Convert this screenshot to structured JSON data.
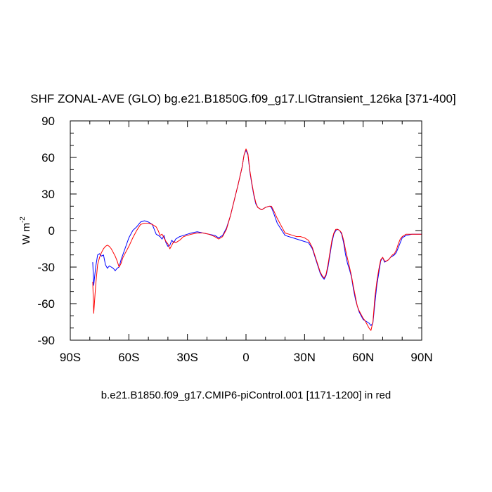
{
  "chart_data": {
    "type": "line",
    "title": "SHF ZONAL-AVE (GLO) bg.e21.B1850G.f09_g17.LIGtransient_126ka [371-400]",
    "caption": "b.e21.B1850.f09_g17.CMIP6-piControl.001 [1171-1200] in red",
    "ylabel_main": "W m",
    "ylabel_sup": "-2",
    "xlim": [
      -90,
      90
    ],
    "ylim": [
      -90,
      90
    ],
    "xticks": [
      {
        "value": -90,
        "label": "90S"
      },
      {
        "value": -60,
        "label": "60S"
      },
      {
        "value": -30,
        "label": "30S"
      },
      {
        "value": 0,
        "label": "0"
      },
      {
        "value": 30,
        "label": "30N"
      },
      {
        "value": 60,
        "label": "60N"
      },
      {
        "value": 90,
        "label": "90N"
      }
    ],
    "yticks": [
      {
        "value": 90,
        "label": "90"
      },
      {
        "value": 60,
        "label": "60"
      },
      {
        "value": 30,
        "label": "30"
      },
      {
        "value": 0,
        "label": "0"
      },
      {
        "value": -30,
        "label": "-30"
      },
      {
        "value": -60,
        "label": "-60"
      },
      {
        "value": -90,
        "label": "-90"
      }
    ],
    "x_minor_step": 10,
    "y_minor_step": 10,
    "grid": false,
    "series": [
      {
        "color": "#0000ff",
        "points": [
          [
            -78.5,
            -26
          ],
          [
            -78,
            -45
          ],
          [
            -77,
            -30
          ],
          [
            -76,
            -20
          ],
          [
            -75,
            -19
          ],
          [
            -74,
            -21
          ],
          [
            -73,
            -20
          ],
          [
            -72,
            -28
          ],
          [
            -71,
            -31
          ],
          [
            -70,
            -29
          ],
          [
            -69,
            -30
          ],
          [
            -68,
            -31
          ],
          [
            -67,
            -33
          ],
          [
            -66,
            -31
          ],
          [
            -65,
            -30
          ],
          [
            -64,
            -24
          ],
          [
            -62,
            -15
          ],
          [
            -60,
            -6
          ],
          [
            -58,
            0
          ],
          [
            -56,
            3
          ],
          [
            -54,
            7
          ],
          [
            -52,
            8
          ],
          [
            -50,
            7
          ],
          [
            -48,
            5
          ],
          [
            -46,
            -3
          ],
          [
            -45,
            -4
          ],
          [
            -44,
            -5
          ],
          [
            -43,
            -7
          ],
          [
            -42,
            -4
          ],
          [
            -41,
            -10
          ],
          [
            -40,
            -13
          ],
          [
            -39,
            -12
          ],
          [
            -38,
            -8
          ],
          [
            -37,
            -10
          ],
          [
            -36,
            -7
          ],
          [
            -34,
            -5
          ],
          [
            -32,
            -4
          ],
          [
            -30,
            -3
          ],
          [
            -28,
            -2
          ],
          [
            -25,
            -1
          ],
          [
            -22,
            -2
          ],
          [
            -19,
            -3
          ],
          [
            -16,
            -4
          ],
          [
            -14,
            -6
          ],
          [
            -12,
            -4
          ],
          [
            -10,
            2
          ],
          [
            -8,
            12
          ],
          [
            -6,
            25
          ],
          [
            -4,
            38
          ],
          [
            -2,
            52
          ],
          [
            -1,
            62
          ],
          [
            0,
            66
          ],
          [
            1,
            62
          ],
          [
            2,
            48
          ],
          [
            3,
            38
          ],
          [
            4,
            29
          ],
          [
            5,
            22
          ],
          [
            6,
            19
          ],
          [
            7,
            18
          ],
          [
            8,
            17
          ],
          [
            10,
            19
          ],
          [
            12,
            20
          ],
          [
            13,
            19
          ],
          [
            14,
            15
          ],
          [
            16,
            6
          ],
          [
            18,
            1
          ],
          [
            20,
            -4
          ],
          [
            22,
            -5
          ],
          [
            24,
            -6
          ],
          [
            26,
            -7
          ],
          [
            28,
            -8
          ],
          [
            30,
            -9
          ],
          [
            32,
            -10
          ],
          [
            34,
            -15
          ],
          [
            36,
            -25
          ],
          [
            38,
            -35
          ],
          [
            39,
            -38
          ],
          [
            40,
            -40
          ],
          [
            41,
            -37
          ],
          [
            42,
            -30
          ],
          [
            43,
            -20
          ],
          [
            44,
            -10
          ],
          [
            45,
            -3
          ],
          [
            46,
            0
          ],
          [
            47,
            1
          ],
          [
            48,
            0
          ],
          [
            49,
            -3
          ],
          [
            50,
            -10
          ],
          [
            51,
            -20
          ],
          [
            52,
            -27
          ],
          [
            53,
            -32
          ],
          [
            54,
            -38
          ],
          [
            55,
            -48
          ],
          [
            56,
            -56
          ],
          [
            57,
            -62
          ],
          [
            58,
            -67
          ],
          [
            59,
            -70
          ],
          [
            60,
            -73
          ],
          [
            61,
            -74
          ],
          [
            62,
            -75
          ],
          [
            63,
            -76
          ],
          [
            64,
            -78
          ],
          [
            65,
            -76
          ],
          [
            66,
            -60
          ],
          [
            67,
            -45
          ],
          [
            68,
            -35
          ],
          [
            69,
            -25
          ],
          [
            70,
            -22
          ],
          [
            71,
            -26
          ],
          [
            72,
            -25
          ],
          [
            73,
            -24
          ],
          [
            74,
            -22
          ],
          [
            75,
            -21
          ],
          [
            76,
            -20
          ],
          [
            77,
            -18
          ],
          [
            78,
            -14
          ],
          [
            79,
            -10
          ],
          [
            80,
            -6
          ],
          [
            82,
            -4
          ],
          [
            85,
            -3
          ],
          [
            90,
            -3
          ]
        ]
      },
      {
        "color": "#ff0000",
        "points": [
          [
            -78.5,
            -42
          ],
          [
            -78,
            -68
          ],
          [
            -77,
            -45
          ],
          [
            -76,
            -28
          ],
          [
            -75,
            -22
          ],
          [
            -74,
            -18
          ],
          [
            -73,
            -15
          ],
          [
            -72,
            -13
          ],
          [
            -71,
            -12
          ],
          [
            -70,
            -13
          ],
          [
            -69,
            -15
          ],
          [
            -68,
            -18
          ],
          [
            -67,
            -21
          ],
          [
            -66,
            -25
          ],
          [
            -65,
            -30
          ],
          [
            -64,
            -27
          ],
          [
            -63,
            -22
          ],
          [
            -62,
            -19
          ],
          [
            -60,
            -13
          ],
          [
            -58,
            -6
          ],
          [
            -56,
            0
          ],
          [
            -54,
            5
          ],
          [
            -52,
            6
          ],
          [
            -50,
            6
          ],
          [
            -48,
            5
          ],
          [
            -46,
            3
          ],
          [
            -45,
            0
          ],
          [
            -44,
            -4
          ],
          [
            -43,
            -3
          ],
          [
            -42,
            -6
          ],
          [
            -41,
            -9
          ],
          [
            -40,
            -11
          ],
          [
            -39,
            -15
          ],
          [
            -38,
            -12
          ],
          [
            -37,
            -9
          ],
          [
            -36,
            -10
          ],
          [
            -34,
            -8
          ],
          [
            -32,
            -5
          ],
          [
            -30,
            -4
          ],
          [
            -28,
            -3
          ],
          [
            -25,
            -2
          ],
          [
            -22,
            -2
          ],
          [
            -19,
            -3
          ],
          [
            -16,
            -5
          ],
          [
            -14,
            -7
          ],
          [
            -12,
            -5
          ],
          [
            -10,
            1
          ],
          [
            -8,
            12
          ],
          [
            -6,
            25
          ],
          [
            -4,
            38
          ],
          [
            -2,
            52
          ],
          [
            -1,
            62
          ],
          [
            0,
            67
          ],
          [
            1,
            63
          ],
          [
            2,
            49
          ],
          [
            3,
            39
          ],
          [
            4,
            30
          ],
          [
            5,
            23
          ],
          [
            6,
            19
          ],
          [
            7,
            18
          ],
          [
            8,
            17
          ],
          [
            10,
            19
          ],
          [
            12,
            20
          ],
          [
            13,
            20
          ],
          [
            14,
            17
          ],
          [
            16,
            10
          ],
          [
            18,
            4
          ],
          [
            20,
            -2
          ],
          [
            22,
            -3
          ],
          [
            24,
            -4
          ],
          [
            26,
            -5
          ],
          [
            28,
            -5
          ],
          [
            30,
            -6
          ],
          [
            32,
            -8
          ],
          [
            34,
            -14
          ],
          [
            36,
            -24
          ],
          [
            38,
            -34
          ],
          [
            39,
            -37
          ],
          [
            40,
            -39
          ],
          [
            41,
            -36
          ],
          [
            42,
            -28
          ],
          [
            43,
            -18
          ],
          [
            44,
            -8
          ],
          [
            45,
            -2
          ],
          [
            46,
            1
          ],
          [
            47,
            1
          ],
          [
            48,
            0
          ],
          [
            49,
            -2
          ],
          [
            50,
            -8
          ],
          [
            51,
            -16
          ],
          [
            52,
            -23
          ],
          [
            53,
            -30
          ],
          [
            54,
            -37
          ],
          [
            55,
            -46
          ],
          [
            56,
            -54
          ],
          [
            57,
            -62
          ],
          [
            58,
            -66
          ],
          [
            59,
            -69
          ],
          [
            60,
            -72
          ],
          [
            61,
            -74
          ],
          [
            62,
            -77
          ],
          [
            63,
            -80
          ],
          [
            64,
            -82
          ],
          [
            65,
            -75
          ],
          [
            66,
            -55
          ],
          [
            67,
            -42
          ],
          [
            68,
            -32
          ],
          [
            69,
            -24
          ],
          [
            70,
            -22
          ],
          [
            71,
            -25
          ],
          [
            72,
            -25
          ],
          [
            73,
            -24
          ],
          [
            74,
            -22
          ],
          [
            75,
            -20
          ],
          [
            76,
            -19
          ],
          [
            77,
            -16
          ],
          [
            78,
            -11
          ],
          [
            79,
            -7
          ],
          [
            80,
            -5
          ],
          [
            82,
            -3
          ],
          [
            85,
            -3
          ],
          [
            90,
            -3
          ]
        ]
      }
    ]
  }
}
